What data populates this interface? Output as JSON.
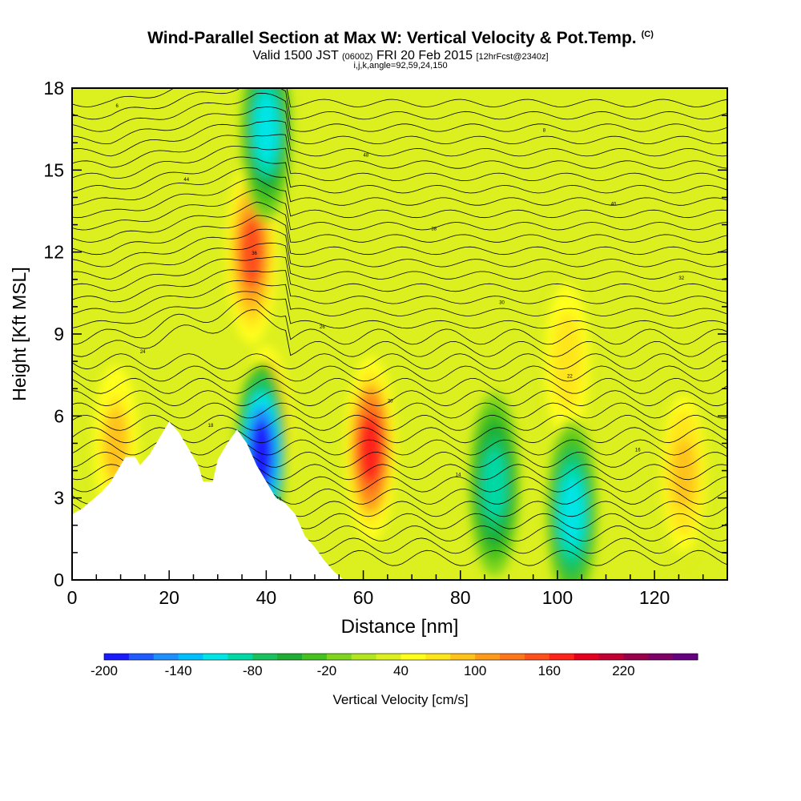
{
  "title": {
    "main": "Wind-Parallel Section at Max W: Vertical Velocity & Pot.Temp.",
    "copyright": "(C)",
    "valid_prefix": "Valid 1500 JST",
    "valid_utc": "(0600Z)",
    "valid_date": "FRI 20 Feb 2015",
    "forecast": "[12hrFcst@2340z]",
    "indices": "i,j,k,angle=92,59,24,150"
  },
  "chart_data": {
    "type": "heatmap",
    "xlabel": "Distance [nm]",
    "ylabel": "Height [Kft MSL]",
    "xlim": [
      0,
      135
    ],
    "ylim": [
      0,
      18
    ],
    "x_ticks": [
      0,
      20,
      40,
      60,
      80,
      100,
      120
    ],
    "y_ticks": [
      0,
      3,
      6,
      9,
      12,
      15,
      18
    ],
    "colorbar": {
      "label": "Vertical Velocity [cm/s]",
      "min": -200,
      "max": 240,
      "step": 20,
      "tick_labels": [
        -200,
        -140,
        -80,
        -20,
        40,
        100,
        160,
        220
      ],
      "colors": [
        "#1a1aff",
        "#1f5cff",
        "#1f8fff",
        "#00bfff",
        "#00e5e5",
        "#00d9a6",
        "#19c25f",
        "#1fad33",
        "#45c21f",
        "#7fd61f",
        "#b2e61f",
        "#dcef1f",
        "#ffff1a",
        "#ffe61a",
        "#ffc21a",
        "#ff9a1a",
        "#ff761a",
        "#ff4f1a",
        "#ff241a",
        "#e6001f",
        "#c20033",
        "#99004c",
        "#7f0066",
        "#660080"
      ]
    },
    "background_value": 20,
    "features": [
      {
        "kind": "updraft",
        "x": 61.5,
        "y": 4.8,
        "w_max": 160
      },
      {
        "kind": "updraft",
        "x": 40,
        "y": 5.2,
        "w_max": 180
      },
      {
        "kind": "updraft",
        "x": 37,
        "y": 12,
        "w_max": 140
      },
      {
        "kind": "updraft",
        "x": 126,
        "y": 3.9,
        "w_max": 90
      },
      {
        "kind": "updraft",
        "x": 102,
        "y": 8,
        "w_max": 70
      },
      {
        "kind": "updraft",
        "x": 9,
        "y": 5,
        "w_max": 80
      },
      {
        "kind": "downdraft",
        "x": 39,
        "y": 4.6,
        "w_min": -200
      },
      {
        "kind": "downdraft",
        "x": 103,
        "y": 2.5,
        "w_min": -120
      },
      {
        "kind": "downdraft",
        "x": 87,
        "y": 3.5,
        "w_min": -90
      },
      {
        "kind": "downdraft",
        "x": 40,
        "y": 16.5,
        "w_min": -110
      }
    ],
    "contour_variable": "Potential temperature",
    "contour_labels": [
      "10",
      "12",
      "14",
      "16",
      "18",
      "20",
      "22",
      "24",
      "26",
      "30",
      "32",
      "36",
      "38",
      "40",
      "44",
      "48",
      "8",
      "6"
    ],
    "terrain_top_kft": [
      [
        0,
        2.4
      ],
      [
        2,
        2.6
      ],
      [
        4,
        2.9
      ],
      [
        6,
        3.2
      ],
      [
        8,
        3.6
      ],
      [
        10,
        4.2
      ],
      [
        11,
        4.5
      ],
      [
        13,
        4.5
      ],
      [
        14,
        4.2
      ],
      [
        16,
        4.6
      ],
      [
        18,
        5.2
      ],
      [
        20,
        5.8
      ],
      [
        22,
        5.4
      ],
      [
        24,
        4.8
      ],
      [
        26,
        4.2
      ],
      [
        27,
        3.6
      ],
      [
        29,
        3.6
      ],
      [
        30,
        4.4
      ],
      [
        32,
        5.0
      ],
      [
        34,
        5.5
      ],
      [
        36,
        5.0
      ],
      [
        38,
        4.2
      ],
      [
        40,
        3.6
      ],
      [
        42,
        3.0
      ],
      [
        44,
        2.8
      ],
      [
        46,
        2.4
      ],
      [
        48,
        1.6
      ],
      [
        50,
        1.2
      ],
      [
        52,
        0.7
      ],
      [
        54,
        0.3
      ],
      [
        56,
        0.0
      ],
      [
        135,
        0.0
      ]
    ]
  }
}
